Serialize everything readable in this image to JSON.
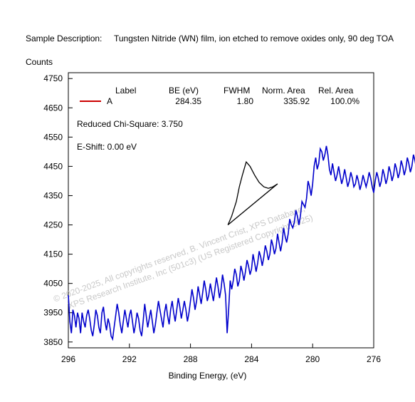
{
  "header": {
    "description_label": "Sample Description:",
    "description_text": "Tungsten Nitride (WN) film, ion etched to remove oxides only, 90 deg TOA",
    "y_axis_title": "Counts"
  },
  "legend": {
    "headers": [
      "Label",
      "BE (eV)",
      "FWHM",
      "Norm. Area",
      "Rel. Area"
    ],
    "rows": [
      {
        "label": "A",
        "be": "284.35",
        "fwhm": "1.80",
        "norm_area": "335.92",
        "rel_area": "100.0%",
        "color": "#cc0000"
      }
    ]
  },
  "annotations": {
    "chi_square": "Reduced Chi-Square: 3.750",
    "e_shift": "E-Shift: 0.00 eV"
  },
  "watermark": {
    "line1": "© 2020-2025,  All copyrights reserved,   B. Vincent Crist,   XPS Database,",
    "line2": "XPS Research Institute, Inc (501c3)   (US Registered Copyright 2025)"
  },
  "chart_data": {
    "type": "line",
    "xlabel": "Binding Energy, (eV)",
    "ylabel": "Counts",
    "xlim": [
      296,
      276
    ],
    "ylim": [
      3830,
      4770
    ],
    "x_ticks": [
      296,
      292,
      288,
      284,
      280,
      276
    ],
    "y_ticks": [
      3850,
      3950,
      4050,
      4150,
      4250,
      4350,
      4450,
      4550,
      4650,
      4750
    ],
    "colors": {
      "data": "#0000cc",
      "fit": "#000000",
      "component": "#cc0000"
    },
    "series": [
      {
        "name": "data",
        "x_start": 296.0,
        "x_step": -0.1,
        "values": [
          4010,
          3920,
          3880,
          3960,
          3940,
          3900,
          3950,
          3930,
          3880,
          3950,
          3920,
          3900,
          3940,
          3960,
          3930,
          3890,
          3870,
          3910,
          3960,
          3940,
          3900,
          3880,
          3950,
          3970,
          3920,
          3890,
          3930,
          3910,
          3870,
          3860,
          3900,
          3940,
          3980,
          3950,
          3910,
          3880,
          3920,
          3960,
          3930,
          3900,
          3940,
          3960,
          3920,
          3880,
          3910,
          3950,
          3930,
          3890,
          3870,
          3920,
          3980,
          3940,
          3900,
          3930,
          3960,
          3920,
          3880,
          3910,
          3950,
          3990,
          3960,
          3930,
          3900,
          3950,
          3980,
          3940,
          3910,
          3960,
          3990,
          3950,
          3920,
          3960,
          4000,
          3970,
          3930,
          3960,
          3990,
          3960,
          3920,
          3950,
          3990,
          4030,
          4000,
          3960,
          3990,
          4040,
          4010,
          3980,
          4020,
          4060,
          4030,
          3990,
          4010,
          4050,
          4020,
          3990,
          4030,
          4070,
          4040,
          4000,
          4030,
          4080,
          4050,
          4010,
          3880,
          3960,
          4060,
          4030,
          4060,
          4100,
          4080,
          4040,
          4060,
          4110,
          4090,
          4060,
          4090,
          4130,
          4110,
          4080,
          4100,
          4150,
          4120,
          4090,
          4120,
          4160,
          4140,
          4110,
          4140,
          4180,
          4160,
          4130,
          4150,
          4200,
          4180,
          4150,
          4170,
          4220,
          4190,
          4160,
          4190,
          4240,
          4210,
          4190,
          4220,
          4270,
          4250,
          4240,
          4260,
          4300,
          4280,
          4250,
          4280,
          4330,
          4320,
          4310,
          4340,
          4400,
          4380,
          4350,
          4390,
          4450,
          4480,
          4440,
          4460,
          4510,
          4500,
          4470,
          4490,
          4520,
          4490,
          4440,
          4420,
          4460,
          4430,
          4400,
          4420,
          4450,
          4420,
          4390,
          4410,
          4440,
          4410,
          4380,
          4400,
          4430,
          4410,
          4380,
          4390,
          4420,
          4400,
          4370,
          4390,
          4420,
          4400,
          4380,
          4400,
          4430,
          4410,
          4380,
          4360,
          4400,
          4430,
          4410,
          4380,
          4400,
          4440,
          4420,
          4390,
          4410,
          4450,
          4430,
          4400,
          4420,
          4460,
          4440,
          4410,
          4430,
          4470,
          4450,
          4420,
          4440,
          4480,
          4460,
          4430,
          4450,
          4490,
          4470,
          4440,
          4460,
          4500,
          4470,
          4440,
          4460,
          4490,
          4470,
          4440,
          4460,
          4500,
          4470,
          4450,
          4480,
          4520,
          4500,
          4470,
          4490,
          4550,
          4510,
          4490
        ],
        "color": "#0000cc"
      },
      {
        "name": "fit",
        "x": [
          285.55,
          285.3,
          285.0,
          284.8,
          284.6,
          284.35,
          284.1,
          283.8,
          283.5,
          283.2,
          282.9,
          282.6,
          282.3
        ],
        "values": [
          4250,
          4280,
          4330,
          4380,
          4420,
          4465,
          4450,
          4420,
          4395,
          4380,
          4375,
          4380,
          4390
        ],
        "color": "#000000"
      },
      {
        "name": "background",
        "x": [
          285.55,
          282.3
        ],
        "values": [
          4250,
          4390
        ],
        "color": "#000000"
      }
    ]
  }
}
